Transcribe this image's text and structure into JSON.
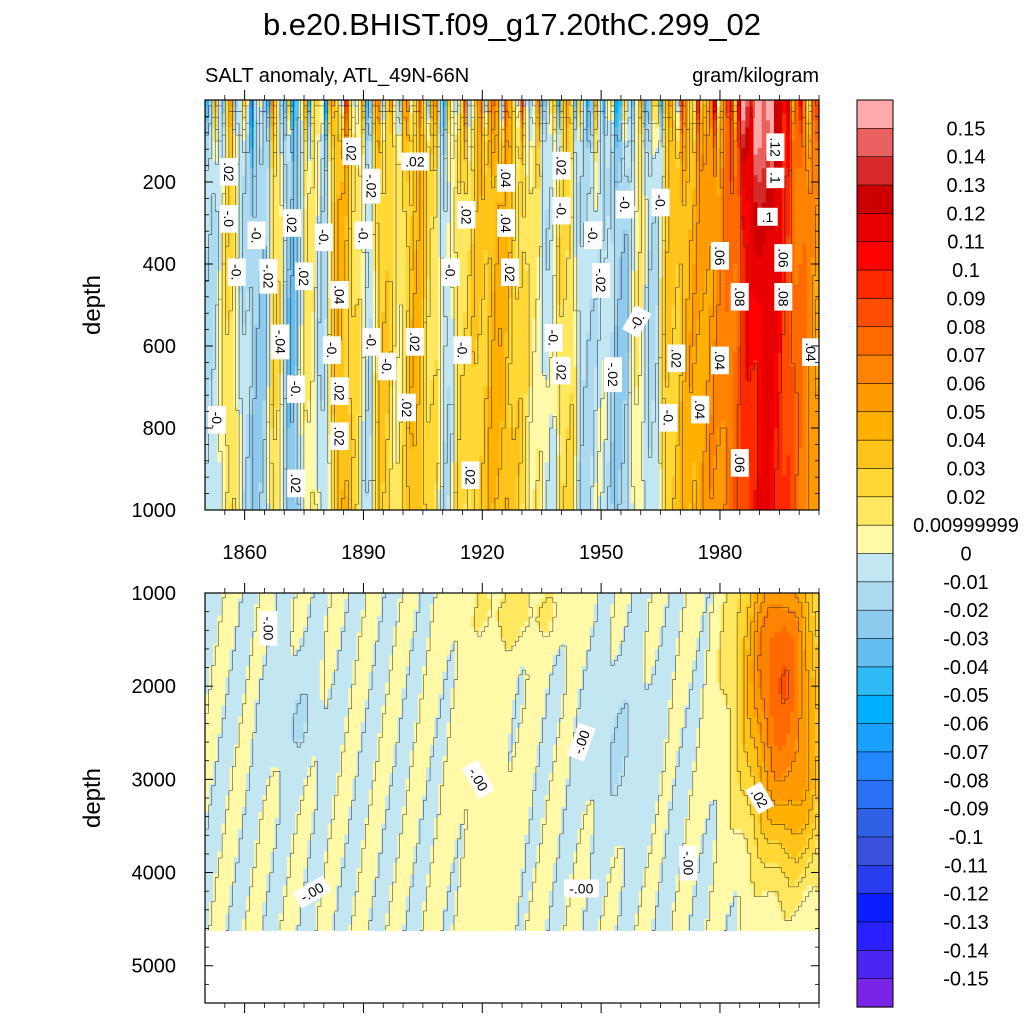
{
  "chart_data": {
    "type": "heatmap",
    "title": "b.e20.BHIST.f09_g17.20thC.299_02",
    "subtitle_left": "SALT anomaly, ATL_49N-66N",
    "subtitle_right": "gram/kilogram",
    "xaxis": {
      "range": [
        1850,
        2005
      ],
      "ticks": [
        "1860",
        "1890",
        "1920",
        "1950",
        "1980"
      ],
      "tick_values": [
        1860,
        1890,
        1920,
        1950,
        1980
      ]
    },
    "panels": [
      {
        "name": "upper",
        "ylabel": "depth",
        "ylim": [
          0,
          1000
        ],
        "yticks": [
          "200",
          "400",
          "600",
          "800",
          "1000"
        ],
        "ytick_values": [
          200,
          400,
          600,
          800,
          1000
        ],
        "contour_labels": [
          {
            "text": ".02",
            "x": 1856,
            "y": 175,
            "rot": 90
          },
          {
            "text": "-.0",
            "x": 1856,
            "y": 290,
            "rot": 90
          },
          {
            "text": "-0.",
            "x": 1863,
            "y": 330,
            "rot": 90
          },
          {
            "text": "-0.",
            "x": 1858,
            "y": 420,
            "rot": 90
          },
          {
            "text": ".02",
            "x": 1872,
            "y": 300,
            "rot": 90
          },
          {
            "text": "-.02",
            "x": 1866,
            "y": 430,
            "rot": 90
          },
          {
            "text": ".02",
            "x": 1875,
            "y": 430,
            "rot": 90
          },
          {
            "text": "-.04",
            "x": 1869,
            "y": 590,
            "rot": 90
          },
          {
            "text": "-0.",
            "x": 1873,
            "y": 705,
            "rot": 90
          },
          {
            "text": "-0.",
            "x": 1853,
            "y": 780,
            "rot": 90
          },
          {
            "text": ".02",
            "x": 1873,
            "y": 935,
            "rot": 90
          },
          {
            "text": "-0.",
            "x": 1880,
            "y": 335,
            "rot": 90
          },
          {
            "text": ".04",
            "x": 1884,
            "y": 475,
            "rot": 90
          },
          {
            "text": "-0.",
            "x": 1882,
            "y": 610,
            "rot": 90
          },
          {
            "text": ".02",
            "x": 1884,
            "y": 710,
            "rot": 90
          },
          {
            "text": ".02",
            "x": 1884,
            "y": 820,
            "rot": 90
          },
          {
            "text": ".02",
            "x": 1887,
            "y": 125,
            "rot": 90
          },
          {
            "text": "-.02",
            "x": 1892,
            "y": 210,
            "rot": 90
          },
          {
            "text": "-0.",
            "x": 1890,
            "y": 330,
            "rot": 90
          },
          {
            "text": "-0.",
            "x": 1892,
            "y": 590,
            "rot": 90
          },
          {
            "text": "-0.",
            "x": 1896,
            "y": 650,
            "rot": 90
          },
          {
            "text": ".02",
            "x": 1903,
            "y": 590,
            "rot": 90
          },
          {
            "text": ".02",
            "x": 1901,
            "y": 750,
            "rot": 90
          },
          {
            "text": ".02",
            "x": 1903,
            "y": 150,
            "rot": 0
          },
          {
            "text": "-0.",
            "x": 1912,
            "y": 420,
            "rot": 90
          },
          {
            "text": "-0.",
            "x": 1915,
            "y": 610,
            "rot": 90
          },
          {
            "text": ".02",
            "x": 1916,
            "y": 280,
            "rot": 90
          },
          {
            "text": ".04",
            "x": 1926,
            "y": 190,
            "rot": 90
          },
          {
            "text": ".04",
            "x": 1926,
            "y": 300,
            "rot": 90
          },
          {
            "text": ".02",
            "x": 1927,
            "y": 420,
            "rot": 90
          },
          {
            "text": ".02",
            "x": 1917,
            "y": 915,
            "rot": 90
          },
          {
            "text": ".02",
            "x": 1940,
            "y": 160,
            "rot": 90
          },
          {
            "text": "-0.",
            "x": 1940,
            "y": 270,
            "rot": 90
          },
          {
            "text": "-0.",
            "x": 1938,
            "y": 580,
            "rot": 90
          },
          {
            "text": ".02",
            "x": 1940,
            "y": 660,
            "rot": 90
          },
          {
            "text": "-0.",
            "x": 1948,
            "y": 330,
            "rot": 90
          },
          {
            "text": "-.02",
            "x": 1950,
            "y": 440,
            "rot": 90
          },
          {
            "text": "-.02",
            "x": 1953,
            "y": 670,
            "rot": 90
          },
          {
            "text": "-0.",
            "x": 1956,
            "y": 255,
            "rot": 90
          },
          {
            "text": "-0.",
            "x": 1959,
            "y": 540,
            "rot": -60
          },
          {
            "text": "-0.",
            "x": 1965,
            "y": 250,
            "rot": 90
          },
          {
            "text": ".02",
            "x": 1969,
            "y": 630,
            "rot": 90
          },
          {
            "text": "-0.",
            "x": 1967,
            "y": 775,
            "rot": 90
          },
          {
            "text": ".04",
            "x": 1975,
            "y": 755,
            "rot": 90
          },
          {
            "text": ".06",
            "x": 1980,
            "y": 380,
            "rot": 90
          },
          {
            "text": ".04",
            "x": 1980,
            "y": 635,
            "rot": 90
          },
          {
            "text": ".08",
            "x": 1985,
            "y": 480,
            "rot": 90
          },
          {
            "text": ".06",
            "x": 1985,
            "y": 885,
            "rot": 90
          },
          {
            "text": ".12",
            "x": 1994,
            "y": 115,
            "rot": 90
          },
          {
            "text": ".1",
            "x": 1994,
            "y": 190,
            "rot": 90
          },
          {
            "text": ".1",
            "x": 1992,
            "y": 285,
            "rot": 0
          },
          {
            "text": ".06",
            "x": 1996,
            "y": 385,
            "rot": 90
          },
          {
            "text": ".08",
            "x": 1996,
            "y": 480,
            "rot": 90
          },
          {
            "text": ".04",
            "x": 2003,
            "y": 615,
            "rot": 90
          }
        ]
      },
      {
        "name": "lower",
        "ylabel": "depth",
        "ylim": [
          1000,
          5400
        ],
        "yticks": [
          "1000",
          "2000",
          "3000",
          "4000",
          "5000"
        ],
        "ytick_values": [
          1000,
          2000,
          3000,
          4000,
          5000
        ],
        "data_bottom_depth": 4620,
        "contour_labels": [
          {
            "text": "-.00",
            "x": 1866,
            "y": 1380,
            "rot": 90
          },
          {
            "text": "-.00",
            "x": 1877,
            "y": 4210,
            "rot": -30
          },
          {
            "text": "-.00",
            "x": 1919,
            "y": 3000,
            "rot": 60
          },
          {
            "text": "-.00",
            "x": 1945,
            "y": 2600,
            "rot": -70
          },
          {
            "text": "-.00",
            "x": 1945,
            "y": 4170,
            "rot": 0
          },
          {
            "text": ".02",
            "x": 1990,
            "y": 3200,
            "rot": 60
          },
          {
            "text": "-.00",
            "x": 1972,
            "y": 3900,
            "rot": 90
          }
        ]
      }
    ],
    "colorbar": {
      "labels": [
        "0.15",
        "0.14",
        "0.13",
        "0.12",
        "0.11",
        "0.1",
        "0.09",
        "0.08",
        "0.07",
        "0.06",
        "0.05",
        "0.04",
        "0.03",
        "0.02",
        "0.00999999",
        "0",
        "-0.01",
        "-0.02",
        "-0.03",
        "-0.04",
        "-0.05",
        "-0.06",
        "-0.07",
        "-0.08",
        "-0.09",
        "-0.1",
        "-0.11",
        "-0.12",
        "-0.13",
        "-0.14",
        "-0.15"
      ],
      "colors": [
        "#ffaaaa",
        "#e86060",
        "#d42a2a",
        "#cc0000",
        "#e80000",
        "#ff0000",
        "#ff2800",
        "#ff4d00",
        "#ff6a00",
        "#ff8200",
        "#ff9a00",
        "#ffb000",
        "#ffc41a",
        "#ffd835",
        "#ffe760",
        "#fff9a8",
        "#c2e6f2",
        "#acdaf0",
        "#8ecaee",
        "#62bff0",
        "#2ebbf5",
        "#00b0ff",
        "#1aa0ff",
        "#2288ff",
        "#2970f5",
        "#3060e6",
        "#3a50dc",
        "#2a3cf0",
        "#0a1eff",
        "#2a20ff",
        "#4a24f0",
        "#7a24e8"
      ]
    }
  }
}
